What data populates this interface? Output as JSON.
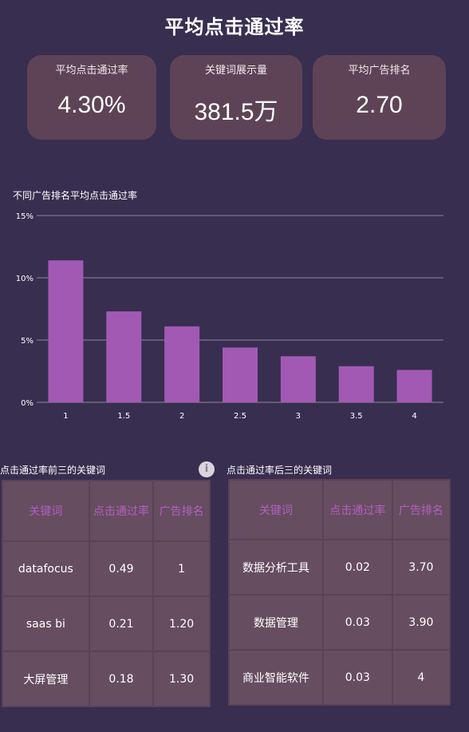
{
  "page": {
    "title": "平均点击通过率"
  },
  "kpis": [
    {
      "label": "平均点击通过率",
      "value": "4.30%"
    },
    {
      "label": "关键词展示量",
      "value": "381.5万"
    },
    {
      "label": "平均广告排名",
      "value": "2.70"
    }
  ],
  "chart_data": {
    "type": "bar",
    "title": "不同广告排名平均点击通过率",
    "categories": [
      "1",
      "1.5",
      "2",
      "2.5",
      "3",
      "3.5",
      "4"
    ],
    "values": [
      11.4,
      7.3,
      6.1,
      4.4,
      3.7,
      2.9,
      2.6
    ],
    "ylim": [
      0,
      15
    ],
    "yticks": [
      0,
      5,
      10,
      15
    ],
    "ytick_labels": [
      "0%",
      "5%",
      "10%",
      "15%"
    ],
    "grid": true,
    "bar_color": "#a259b3"
  },
  "tables": {
    "top": {
      "title": "点击通过率前三的关键词",
      "headers": [
        "关键词",
        "点击通过率",
        "广告排名"
      ],
      "rows": [
        [
          "datafocus",
          "0.49",
          "1"
        ],
        [
          "saas bi",
          "0.21",
          "1.20"
        ],
        [
          "大屏管理",
          "0.18",
          "1.30"
        ]
      ]
    },
    "bottom": {
      "title": "点击通过率后三的关键词",
      "headers": [
        "关键词",
        "点击通过率",
        "广告排名"
      ],
      "rows": [
        [
          "数据分析工具",
          "0.02",
          "3.70"
        ],
        [
          "数据管理",
          "0.03",
          "3.90"
        ],
        [
          "商业智能软件",
          "0.03",
          "4"
        ]
      ]
    }
  },
  "icons": {
    "info": "info-icon"
  },
  "colors": {
    "background": "#382e50",
    "card": "#5e4356",
    "header_text": "#b35fbf"
  }
}
